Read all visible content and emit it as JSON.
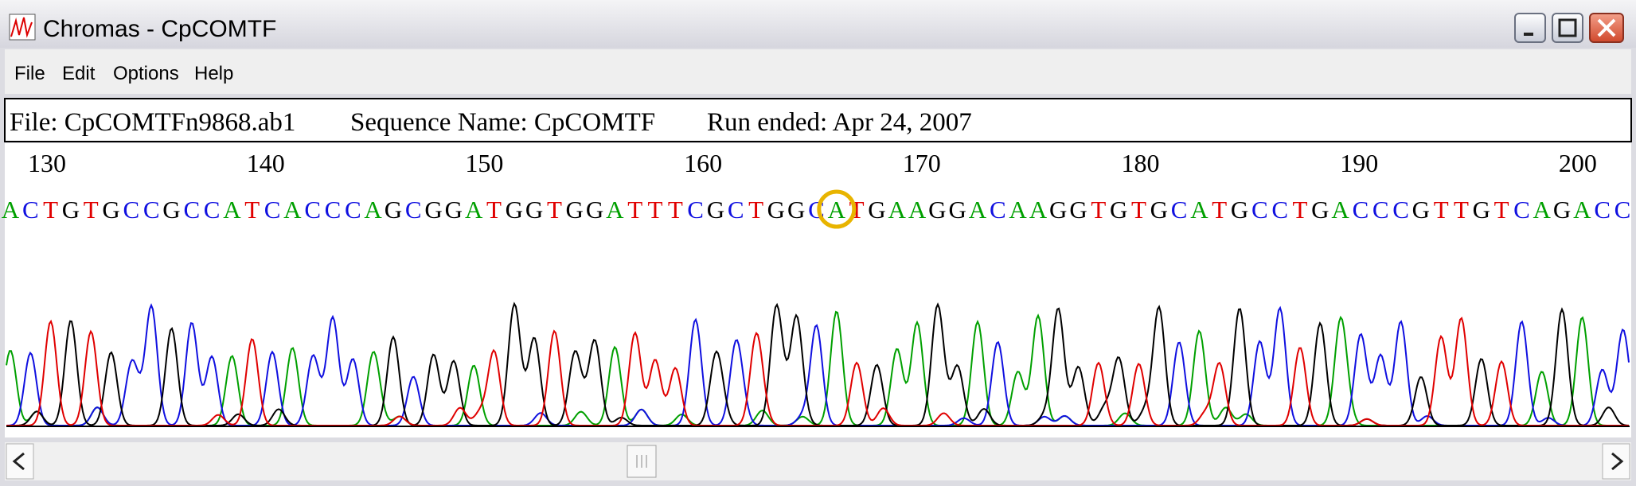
{
  "window": {
    "title": "Chromas - CpCOMTF"
  },
  "menu": [
    "File",
    "Edit",
    "Options",
    "Help"
  ],
  "info": {
    "file": "File: CpCOMTFn9868.ab1",
    "sequence_name": "Sequence Name: CpCOMTF",
    "run_ended": "Run ended: Apr 24, 2007"
  },
  "ruler": [
    130,
    140,
    150,
    160,
    170,
    180,
    190,
    200
  ],
  "bases": [
    "A",
    "C",
    "T",
    "G",
    "T",
    "G",
    "C",
    "C",
    "G",
    "C",
    "C",
    "A",
    "T",
    "C",
    "A",
    "C",
    "C",
    "C",
    "A",
    "G",
    "C",
    "G",
    "G",
    "A",
    "T",
    "G",
    "G",
    "T",
    "G",
    "G",
    "A",
    "T",
    "T",
    "T",
    "C",
    "G",
    "C",
    "T",
    "G",
    "G",
    "C",
    "A",
    "T",
    "G",
    "A",
    "A",
    "G",
    "G",
    "A",
    "C",
    "A",
    "A",
    "G",
    "G",
    "T",
    "G",
    "T",
    "G",
    "C",
    "A",
    "T",
    "G",
    "C",
    "C",
    "T",
    "G",
    "A",
    "C",
    "C",
    "C",
    "G",
    "T",
    "T",
    "G",
    "T",
    "C",
    "A",
    "G",
    "A",
    "C",
    "C"
  ],
  "base_colors": {
    "A": "#00a000",
    "C": "#1010e0",
    "G": "#000000",
    "T": "#e00000"
  }
}
